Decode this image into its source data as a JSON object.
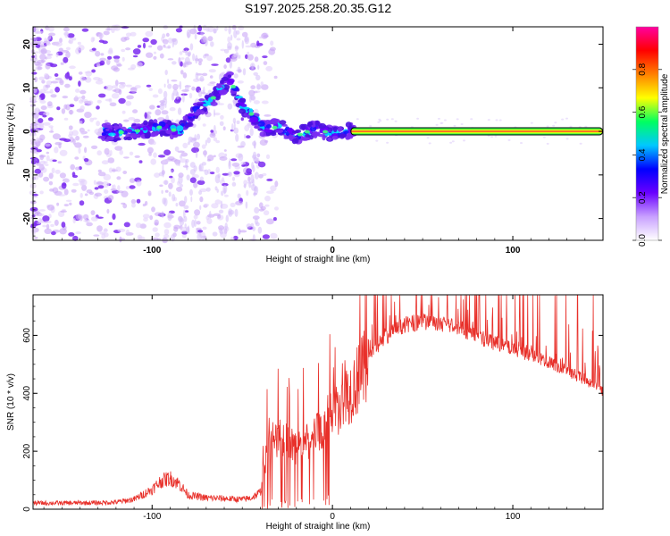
{
  "title": "S197.2025.258.20.35.G12",
  "colors": {
    "signal": "#e8302a",
    "frame": "#000000"
  },
  "chart_data": [
    {
      "type": "heatmap",
      "xlabel": "Height of straight line (km)",
      "ylabel": "Frequency (Hz)",
      "xlim": [
        -166,
        150
      ],
      "ylim": [
        -25,
        24
      ],
      "xticks": [
        -100,
        0,
        100
      ],
      "yticks": [
        -20,
        -10,
        0,
        10,
        20
      ],
      "colorbar": {
        "label": "Normalized spectral amplitude",
        "range": [
          0.0,
          1.0
        ],
        "ticks": [
          0.0,
          0.2,
          0.4,
          0.6,
          0.8
        ],
        "tick_labels": [
          "0.0",
          "0.2",
          "0.4",
          "0.6",
          "0.8"
        ],
        "colormap": [
          "#ffffff",
          "#c8a0ff",
          "#6a00ff",
          "#0000ff",
          "#00c8ff",
          "#00ff60",
          "#ffff00",
          "#ff8000",
          "#ff0000",
          "#ff00a0"
        ]
      },
      "ridge": [
        {
          "x": -125,
          "y": -0.5
        },
        {
          "x": -110,
          "y": 0
        },
        {
          "x": -95,
          "y": 1
        },
        {
          "x": -85,
          "y": 0
        },
        {
          "x": -75,
          "y": 5
        },
        {
          "x": -65,
          "y": 8
        },
        {
          "x": -57,
          "y": 12
        },
        {
          "x": -50,
          "y": 6
        },
        {
          "x": -45,
          "y": 4
        },
        {
          "x": -38,
          "y": 0.5
        },
        {
          "x": -30,
          "y": 1
        },
        {
          "x": -20,
          "y": -1
        },
        {
          "x": -10,
          "y": 0.5
        },
        {
          "x": 0,
          "y": -0.5
        },
        {
          "x": 10,
          "y": 0
        },
        {
          "x": 150,
          "y": 0
        }
      ],
      "stable_band": {
        "x_start": 10,
        "x_end": 150,
        "freq": 0
      }
    },
    {
      "type": "line",
      "xlabel": "Height of straight line (km)",
      "ylabel": "SNR (10 * v/v)",
      "xlim": [
        -166,
        150
      ],
      "ylim": [
        0,
        740
      ],
      "xticks": [
        -100,
        0,
        100
      ],
      "yticks": [
        0,
        200,
        400,
        600
      ],
      "series": [
        {
          "name": "SNR",
          "x": [
            -166,
            -150,
            -130,
            -120,
            -110,
            -100,
            -95,
            -90,
            -85,
            -80,
            -70,
            -60,
            -50,
            -45,
            -40,
            -37,
            -35,
            -30,
            -25,
            -20,
            -15,
            -10,
            -5,
            0,
            10,
            20,
            30,
            40,
            50,
            60,
            70,
            80,
            90,
            100,
            110,
            120,
            130,
            140,
            150
          ],
          "y": [
            22,
            22,
            23,
            25,
            35,
            70,
            100,
            110,
            90,
            50,
            40,
            38,
            35,
            40,
            60,
            180,
            240,
            250,
            240,
            220,
            230,
            260,
            300,
            340,
            420,
            520,
            600,
            640,
            650,
            645,
            630,
            600,
            575,
            555,
            535,
            510,
            480,
            450,
            410
          ]
        }
      ]
    }
  ]
}
